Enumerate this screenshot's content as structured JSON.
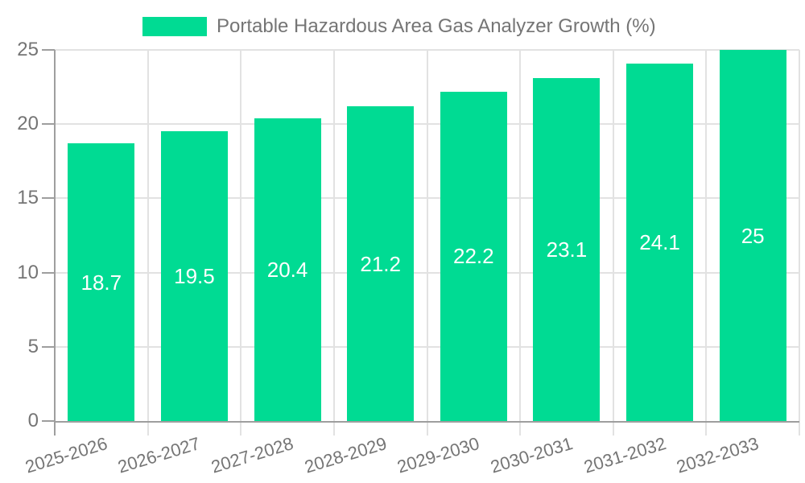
{
  "legend": {
    "title": "Portable Hazardous Area Gas Analyzer Growth (%)"
  },
  "chart_data": {
    "type": "bar",
    "title": "Portable Hazardous Area Gas Analyzer Growth (%)",
    "categories": [
      "2025-2026",
      "2026-2027",
      "2027-2028",
      "2028-2029",
      "2029-2030",
      "2030-2031",
      "2031-2032",
      "2032-2033"
    ],
    "values": [
      18.7,
      19.5,
      20.4,
      21.2,
      22.2,
      23.1,
      24.1,
      25
    ],
    "value_labels": [
      "18.7",
      "19.5",
      "20.4",
      "21.2",
      "22.2",
      "23.1",
      "24.1",
      "25"
    ],
    "xlabel": "",
    "ylabel": "",
    "ylim": [
      0,
      25
    ],
    "yticks": [
      0,
      5,
      10,
      15,
      20,
      25
    ],
    "ytick_labels": [
      "0",
      "5",
      "10",
      "15",
      "20",
      "25"
    ],
    "grid": true,
    "legend_position": "top-center",
    "colors": {
      "bar": "#00DB93",
      "bar_value_text": "#ffffff",
      "axis_text": "#757575",
      "grid_line": "#e2e2e2",
      "axis_line": "#9e9e9e",
      "background": "#ffffff"
    }
  }
}
